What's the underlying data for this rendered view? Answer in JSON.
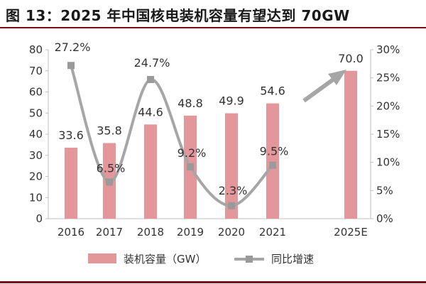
{
  "title": "图 13：2025 年中国核电装机容量有望达到 70GW",
  "chart_data": {
    "type": "bar",
    "categories": [
      "2016",
      "2017",
      "2018",
      "2019",
      "2020",
      "2021",
      "2025E"
    ],
    "series": [
      {
        "name": "装机容量（GW）",
        "type": "bar",
        "axis": "left",
        "values": [
          33.6,
          35.8,
          44.6,
          48.8,
          49.9,
          54.6,
          70.0
        ],
        "labels": [
          "33.6",
          "35.8",
          "44.6",
          "48.8",
          "49.9",
          "54.6",
          "70.0"
        ]
      },
      {
        "name": "同比增速",
        "type": "line",
        "axis": "right",
        "values": [
          27.2,
          6.5,
          24.7,
          9.2,
          2.3,
          9.5,
          null
        ],
        "labels": [
          "27.2%",
          "6.5%",
          "24.7%",
          "9.2%",
          "2.3%",
          "9.5%",
          ""
        ]
      }
    ],
    "y_left": {
      "min": 0,
      "max": 80,
      "ticks": [
        "0",
        "10",
        "20",
        "30",
        "40",
        "50",
        "60",
        "70",
        "80"
      ]
    },
    "y_right": {
      "min": 0,
      "max": 30,
      "ticks": [
        "0%",
        "5%",
        "10%",
        "15%",
        "20%",
        "25%",
        "30%"
      ]
    },
    "legend_position": "bottom",
    "grid": false,
    "colors": {
      "bar": "#e4979a",
      "line": "#a6a6a6",
      "marker": "#9a9a9a",
      "axis": "#bfbfbf",
      "text": "#333333",
      "arrow": "#a6a6a6"
    },
    "arrow": {
      "from_category": "2021",
      "to_category": "2025E",
      "direction": "up-right"
    }
  }
}
